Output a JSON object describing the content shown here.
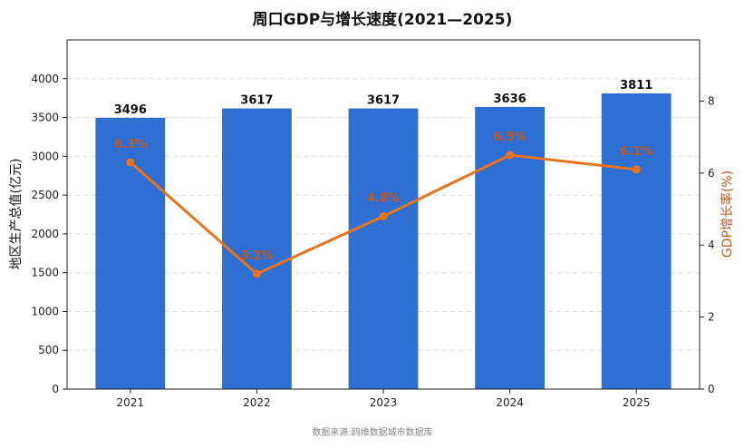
{
  "chart_data": {
    "type": "bar",
    "title": "周口GDP与增长速度(2021—2025)",
    "categories": [
      "2021",
      "2022",
      "2023",
      "2024",
      "2025"
    ],
    "series": [
      {
        "name": "地区生产总值(亿元)",
        "type": "bar",
        "axis": "left",
        "values": [
          3496,
          3617,
          3617,
          3636,
          3811
        ],
        "labels": [
          "3496",
          "3617",
          "3617",
          "3636",
          "3811"
        ],
        "color": "#2f6fd1"
      },
      {
        "name": "GDP增长率(%)",
        "type": "line",
        "axis": "right",
        "values": [
          6.3,
          3.2,
          4.8,
          6.5,
          6.1
        ],
        "labels": [
          "6.3%",
          "3.2%",
          "4.8%",
          "6.5%",
          "6.1%"
        ],
        "color": "#e8731a"
      }
    ],
    "ylabel": "地区生产总值(亿元)",
    "y2label": "GDP增长率(%)",
    "ylim": [
      0,
      4500
    ],
    "y2lim": [
      0,
      9.7
    ],
    "yticks": [
      0,
      500,
      1000,
      1500,
      2000,
      2500,
      3000,
      3500,
      4000
    ],
    "y2ticks": [
      0,
      2,
      4,
      6,
      8
    ],
    "grid": true,
    "legend": "none"
  },
  "source_text": "数据来源:鸥维数据城市数据库",
  "colors": {
    "bar": "#2f6fd1",
    "line": "#e8731a",
    "y2_label": "#c0581a",
    "grid": "#dcdcdc"
  }
}
